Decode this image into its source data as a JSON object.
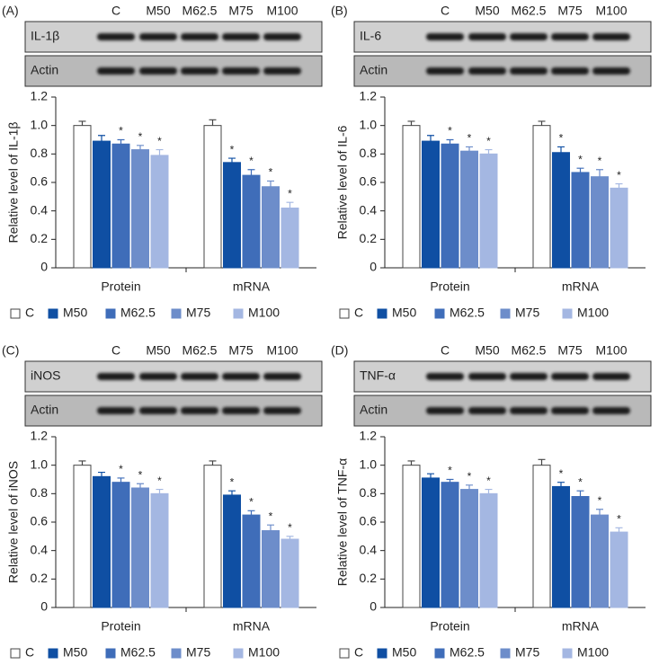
{
  "chart_data": [
    {
      "type": "bar",
      "panel_label": "(A)",
      "blot_rows": [
        "IL-1β",
        "Actin"
      ],
      "ylabel": "Relative level of IL-1β",
      "categories": [
        "Protein",
        "mRNA"
      ],
      "series": [
        {
          "name": "C",
          "color": "#ffffff",
          "values": [
            1.0,
            1.0
          ],
          "errors": [
            0.03,
            0.04
          ],
          "annotations": [
            null,
            null
          ]
        },
        {
          "name": "M50",
          "color": "#0f4fa3",
          "values": [
            0.89,
            0.74
          ],
          "errors": [
            0.04,
            0.03
          ],
          "annotations": [
            null,
            "*"
          ]
        },
        {
          "name": "M62.5",
          "color": "#3f6db9",
          "values": [
            0.87,
            0.65
          ],
          "errors": [
            0.03,
            0.04
          ],
          "annotations": [
            "*",
            "*"
          ]
        },
        {
          "name": "M75",
          "color": "#6d8dca",
          "values": [
            0.83,
            0.57
          ],
          "errors": [
            0.03,
            0.04
          ],
          "annotations": [
            "*",
            "*"
          ]
        },
        {
          "name": "M100",
          "color": "#a4b7e2",
          "values": [
            0.79,
            0.42
          ],
          "errors": [
            0.04,
            0.04
          ],
          "annotations": [
            "*",
            "*"
          ]
        }
      ],
      "ylim": [
        0,
        1.2
      ],
      "yticks": [
        0,
        0.2,
        0.4,
        0.6,
        0.8,
        {
          "value": 1,
          "label": "1.0"
        },
        1.2
      ]
    },
    {
      "type": "bar",
      "panel_label": "(B)",
      "blot_rows": [
        "IL-6",
        "Actin"
      ],
      "ylabel": "Relative level of IL-6",
      "categories": [
        "Protein",
        "mRNA"
      ],
      "series": [
        {
          "name": "C",
          "color": "#ffffff",
          "values": [
            1.0,
            1.0
          ],
          "errors": [
            0.03,
            0.03
          ],
          "annotations": [
            null,
            null
          ]
        },
        {
          "name": "M50",
          "color": "#0f4fa3",
          "values": [
            0.89,
            0.81
          ],
          "errors": [
            0.04,
            0.04
          ],
          "annotations": [
            null,
            "*"
          ]
        },
        {
          "name": "M62.5",
          "color": "#3f6db9",
          "values": [
            0.87,
            0.67
          ],
          "errors": [
            0.03,
            0.03
          ],
          "annotations": [
            "*",
            "*"
          ]
        },
        {
          "name": "M75",
          "color": "#6d8dca",
          "values": [
            0.82,
            0.64
          ],
          "errors": [
            0.03,
            0.05
          ],
          "annotations": [
            "*",
            "*"
          ]
        },
        {
          "name": "M100",
          "color": "#a4b7e2",
          "values": [
            0.8,
            0.56
          ],
          "errors": [
            0.03,
            0.03
          ],
          "annotations": [
            "*",
            "*"
          ]
        }
      ],
      "ylim": [
        0,
        1.2
      ],
      "yticks": [
        0,
        0.2,
        0.4,
        0.6,
        0.8,
        {
          "value": 1,
          "label": "1.0"
        },
        1.2
      ]
    },
    {
      "type": "bar",
      "panel_label": "(C)",
      "blot_rows": [
        "iNOS",
        "Actin"
      ],
      "ylabel": "Relative level of iNOS",
      "categories": [
        "Protein",
        "mRNA"
      ],
      "series": [
        {
          "name": "C",
          "color": "#ffffff",
          "values": [
            1.0,
            1.0
          ],
          "errors": [
            0.03,
            0.03
          ],
          "annotations": [
            null,
            null
          ]
        },
        {
          "name": "M50",
          "color": "#0f4fa3",
          "values": [
            0.92,
            0.79
          ],
          "errors": [
            0.03,
            0.03
          ],
          "annotations": [
            null,
            "*"
          ]
        },
        {
          "name": "M62.5",
          "color": "#3f6db9",
          "values": [
            0.88,
            0.65
          ],
          "errors": [
            0.03,
            0.03
          ],
          "annotations": [
            "*",
            "*"
          ]
        },
        {
          "name": "M75",
          "color": "#6d8dca",
          "values": [
            0.84,
            0.54
          ],
          "errors": [
            0.03,
            0.04
          ],
          "annotations": [
            "*",
            "*"
          ]
        },
        {
          "name": "M100",
          "color": "#a4b7e2",
          "values": [
            0.8,
            0.48
          ],
          "errors": [
            0.03,
            0.02
          ],
          "annotations": [
            "*",
            "*"
          ]
        }
      ],
      "ylim": [
        0,
        1.2
      ],
      "yticks": [
        0,
        0.2,
        0.4,
        0.6,
        0.8,
        {
          "value": 1,
          "label": "1.0"
        },
        1.2
      ]
    },
    {
      "type": "bar",
      "panel_label": "(D)",
      "blot_rows": [
        "TNF-α",
        "Actin"
      ],
      "ylabel": "Relative level of TNF-α",
      "categories": [
        "Protein",
        "mRNA"
      ],
      "series": [
        {
          "name": "C",
          "color": "#ffffff",
          "values": [
            1.0,
            1.0
          ],
          "errors": [
            0.03,
            0.04
          ],
          "annotations": [
            null,
            null
          ]
        },
        {
          "name": "M50",
          "color": "#0f4fa3",
          "values": [
            0.91,
            0.85
          ],
          "errors": [
            0.03,
            0.03
          ],
          "annotations": [
            null,
            "*"
          ]
        },
        {
          "name": "M62.5",
          "color": "#3f6db9",
          "values": [
            0.88,
            0.78
          ],
          "errors": [
            0.02,
            0.04
          ],
          "annotations": [
            "*",
            "*"
          ]
        },
        {
          "name": "M75",
          "color": "#6d8dca",
          "values": [
            0.83,
            0.65
          ],
          "errors": [
            0.03,
            0.04
          ],
          "annotations": [
            "*",
            "*"
          ]
        },
        {
          "name": "M100",
          "color": "#a4b7e2",
          "values": [
            0.8,
            0.53
          ],
          "errors": [
            0.03,
            0.03
          ],
          "annotations": [
            "*",
            "*"
          ]
        }
      ],
      "ylim": [
        0,
        1.2
      ],
      "yticks": [
        0,
        0.2,
        0.4,
        0.6,
        0.8,
        {
          "value": 1,
          "label": "1.0"
        },
        1.2
      ]
    }
  ]
}
